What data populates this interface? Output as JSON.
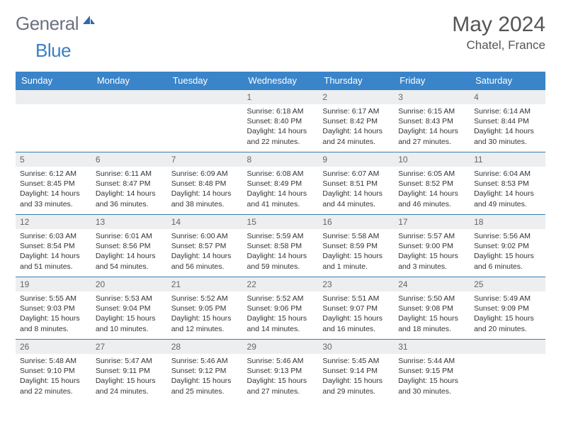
{
  "branding": {
    "word1": "General",
    "word2": "Blue",
    "word1_color": "#6b7280",
    "word2_color": "#3a7fc4",
    "icon_fill": "#2f6aa8"
  },
  "title": {
    "month": "May 2024",
    "location": "Chatel, France"
  },
  "colors": {
    "header_bg": "#3a85c9",
    "header_text": "#ffffff",
    "daynum_bg": "#eceeef",
    "week_border": "#3a7fae",
    "body_text": "#333333"
  },
  "day_headers": [
    "Sunday",
    "Monday",
    "Tuesday",
    "Wednesday",
    "Thursday",
    "Friday",
    "Saturday"
  ],
  "weeks": [
    [
      {
        "blank": true
      },
      {
        "blank": true
      },
      {
        "blank": true
      },
      {
        "n": "1",
        "sr": "6:18 AM",
        "ss": "8:40 PM",
        "dl": "14 hours and 22 minutes."
      },
      {
        "n": "2",
        "sr": "6:17 AM",
        "ss": "8:42 PM",
        "dl": "14 hours and 24 minutes."
      },
      {
        "n": "3",
        "sr": "6:15 AM",
        "ss": "8:43 PM",
        "dl": "14 hours and 27 minutes."
      },
      {
        "n": "4",
        "sr": "6:14 AM",
        "ss": "8:44 PM",
        "dl": "14 hours and 30 minutes."
      }
    ],
    [
      {
        "n": "5",
        "sr": "6:12 AM",
        "ss": "8:45 PM",
        "dl": "14 hours and 33 minutes."
      },
      {
        "n": "6",
        "sr": "6:11 AM",
        "ss": "8:47 PM",
        "dl": "14 hours and 36 minutes."
      },
      {
        "n": "7",
        "sr": "6:09 AM",
        "ss": "8:48 PM",
        "dl": "14 hours and 38 minutes."
      },
      {
        "n": "8",
        "sr": "6:08 AM",
        "ss": "8:49 PM",
        "dl": "14 hours and 41 minutes."
      },
      {
        "n": "9",
        "sr": "6:07 AM",
        "ss": "8:51 PM",
        "dl": "14 hours and 44 minutes."
      },
      {
        "n": "10",
        "sr": "6:05 AM",
        "ss": "8:52 PM",
        "dl": "14 hours and 46 minutes."
      },
      {
        "n": "11",
        "sr": "6:04 AM",
        "ss": "8:53 PM",
        "dl": "14 hours and 49 minutes."
      }
    ],
    [
      {
        "n": "12",
        "sr": "6:03 AM",
        "ss": "8:54 PM",
        "dl": "14 hours and 51 minutes."
      },
      {
        "n": "13",
        "sr": "6:01 AM",
        "ss": "8:56 PM",
        "dl": "14 hours and 54 minutes."
      },
      {
        "n": "14",
        "sr": "6:00 AM",
        "ss": "8:57 PM",
        "dl": "14 hours and 56 minutes."
      },
      {
        "n": "15",
        "sr": "5:59 AM",
        "ss": "8:58 PM",
        "dl": "14 hours and 59 minutes."
      },
      {
        "n": "16",
        "sr": "5:58 AM",
        "ss": "8:59 PM",
        "dl": "15 hours and 1 minute."
      },
      {
        "n": "17",
        "sr": "5:57 AM",
        "ss": "9:00 PM",
        "dl": "15 hours and 3 minutes."
      },
      {
        "n": "18",
        "sr": "5:56 AM",
        "ss": "9:02 PM",
        "dl": "15 hours and 6 minutes."
      }
    ],
    [
      {
        "n": "19",
        "sr": "5:55 AM",
        "ss": "9:03 PM",
        "dl": "15 hours and 8 minutes."
      },
      {
        "n": "20",
        "sr": "5:53 AM",
        "ss": "9:04 PM",
        "dl": "15 hours and 10 minutes."
      },
      {
        "n": "21",
        "sr": "5:52 AM",
        "ss": "9:05 PM",
        "dl": "15 hours and 12 minutes."
      },
      {
        "n": "22",
        "sr": "5:52 AM",
        "ss": "9:06 PM",
        "dl": "15 hours and 14 minutes."
      },
      {
        "n": "23",
        "sr": "5:51 AM",
        "ss": "9:07 PM",
        "dl": "15 hours and 16 minutes."
      },
      {
        "n": "24",
        "sr": "5:50 AM",
        "ss": "9:08 PM",
        "dl": "15 hours and 18 minutes."
      },
      {
        "n": "25",
        "sr": "5:49 AM",
        "ss": "9:09 PM",
        "dl": "15 hours and 20 minutes."
      }
    ],
    [
      {
        "n": "26",
        "sr": "5:48 AM",
        "ss": "9:10 PM",
        "dl": "15 hours and 22 minutes."
      },
      {
        "n": "27",
        "sr": "5:47 AM",
        "ss": "9:11 PM",
        "dl": "15 hours and 24 minutes."
      },
      {
        "n": "28",
        "sr": "5:46 AM",
        "ss": "9:12 PM",
        "dl": "15 hours and 25 minutes."
      },
      {
        "n": "29",
        "sr": "5:46 AM",
        "ss": "9:13 PM",
        "dl": "15 hours and 27 minutes."
      },
      {
        "n": "30",
        "sr": "5:45 AM",
        "ss": "9:14 PM",
        "dl": "15 hours and 29 minutes."
      },
      {
        "n": "31",
        "sr": "5:44 AM",
        "ss": "9:15 PM",
        "dl": "15 hours and 30 minutes."
      },
      {
        "blank": true
      }
    ]
  ],
  "labels": {
    "sunrise": "Sunrise: ",
    "sunset": "Sunset: ",
    "daylight": "Daylight: "
  }
}
